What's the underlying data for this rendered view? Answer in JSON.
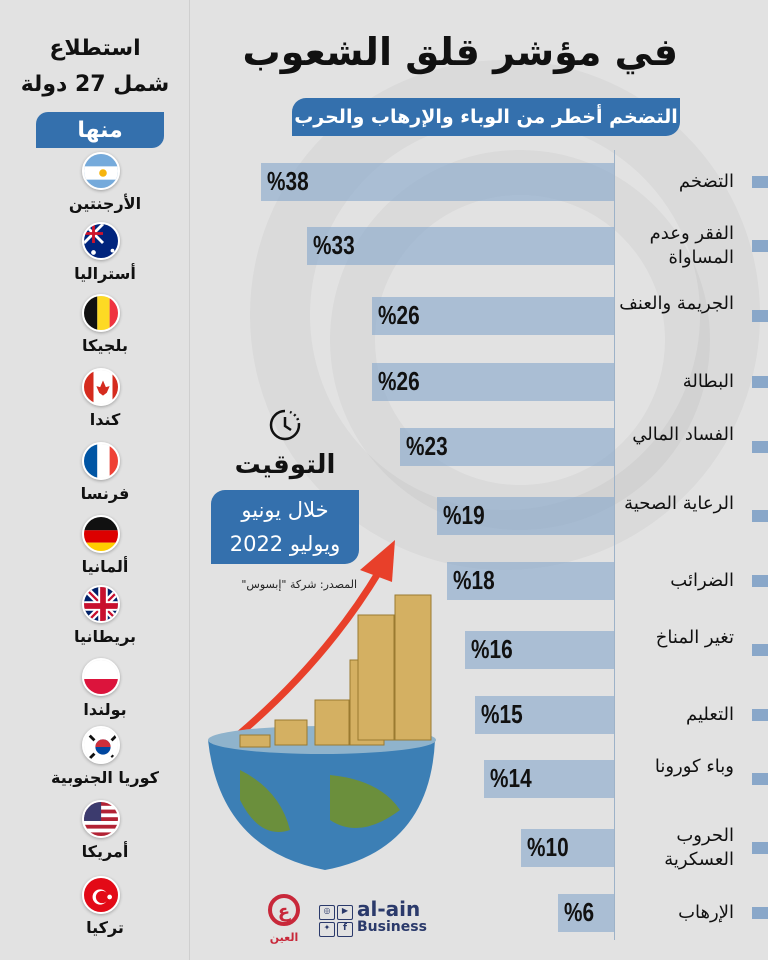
{
  "header": {
    "title": "في مؤشر قلق الشعوب",
    "subtitle": "التضخم أخطر من الوباء والإرهاب والحرب"
  },
  "survey": {
    "line1": "استطلاع",
    "line2": "شمل 27 دولة",
    "among": "منها",
    "countries": [
      {
        "name": "الأرجنتين",
        "flag": "argentina"
      },
      {
        "name": "أستراليا",
        "flag": "australia"
      },
      {
        "name": "بلجيكا",
        "flag": "belgium"
      },
      {
        "name": "كندا",
        "flag": "canada"
      },
      {
        "name": "فرنسا",
        "flag": "france"
      },
      {
        "name": "ألمانيا",
        "flag": "germany"
      },
      {
        "name": "بريطانيا",
        "flag": "uk"
      },
      {
        "name": "بولندا",
        "flag": "poland"
      },
      {
        "name": "كوريا الجنوبية",
        "flag": "south-korea"
      },
      {
        "name": "أمريكا",
        "flag": "usa"
      },
      {
        "name": "تركيا",
        "flag": "turkey"
      }
    ]
  },
  "timing": {
    "label": "التوقيت",
    "line1": "خلال يونيو",
    "line2": "ويوليو 2022",
    "source": "المصدر: شركة \"إبسوس\""
  },
  "brand": {
    "name": "al-ain",
    "sub": "Business",
    "ar": "العين"
  },
  "colors": {
    "accent": "#3470ad",
    "bar": "#8caacd",
    "arrow": "#e8402a"
  },
  "chart_data": {
    "type": "bar",
    "orientation": "horizontal",
    "categories": [
      "التضخم",
      "الفقر وعدم المساواة",
      "الجريمة والعنف",
      "البطالة",
      "الفساد المالي",
      "الرعاية الصحية",
      "الضرائب",
      "تغير المناخ",
      "التعليم",
      "وباء كورونا",
      "الحروب العسكرية",
      "الإرهاب"
    ],
    "values": [
      38,
      33,
      26,
      26,
      23,
      19,
      18,
      16,
      15,
      14,
      10,
      6
    ],
    "labels": [
      "%38",
      "%33",
      "%26",
      "%26",
      "%23",
      "%19",
      "%18",
      "%16",
      "%15",
      "%14",
      "%10",
      "%6"
    ],
    "unit": "%",
    "grid": false
  }
}
